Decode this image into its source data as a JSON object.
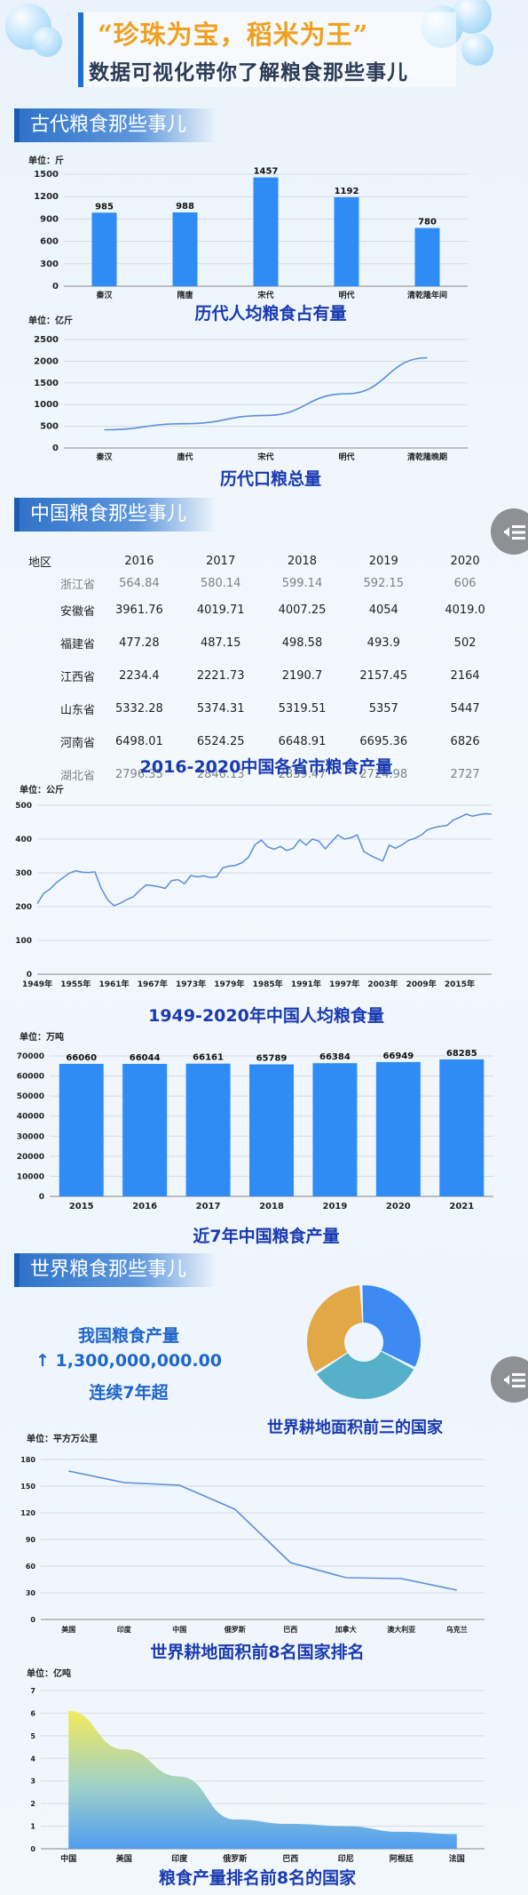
{
  "header": {
    "title": "“珍珠为宝，稻米为王”",
    "subtitle": "数据可视化带你了解粮食那些事儿"
  },
  "sections": {
    "ancient": "古代粮食那些事儿",
    "china": "中国粮食那些事儿",
    "world": "世界粮食那些事儿"
  },
  "captions": {
    "c1": "历代人均粮食占有量",
    "c2": "历代口粮总量",
    "c3": "2016-2020中国各省市粮食产量",
    "c4": "1949-2020年中国人均粮食量",
    "c5": "近7年中国粮食产量",
    "c6": "世界耕地面积前三的国家",
    "c7": "世界耕地面积前8名国家排名",
    "c8": "粮食产量排名前8名的国家"
  },
  "stat": {
    "line1": "我国粮食产量",
    "value": "1,300,000,000.00",
    "line3": "连续7年超",
    "arrow": "arrow-up-icon"
  },
  "colors": {
    "bar": "#2f8cf5",
    "line": "#5b8fd8",
    "title_accent": "#f0a020",
    "caption": "#1a3bb0"
  },
  "table": {
    "headers": [
      "地区",
      "2016",
      "2017",
      "2018",
      "2019",
      "2020"
    ],
    "rows": [
      [
        "",
        "564.84",
        "580.14",
        "599.14",
        "592.15",
        "606"
      ],
      [
        "安徽省",
        "3961.76",
        "4019.71",
        "4007.25",
        "4054",
        "4019.0"
      ],
      [
        "福建省",
        "477.28",
        "487.15",
        "498.58",
        "493.9",
        "502"
      ],
      [
        "江西省",
        "2234.4",
        "2221.73",
        "2190.7",
        "2157.45",
        "2164"
      ],
      [
        "山东省",
        "5332.28",
        "5374.31",
        "5319.51",
        "5357",
        "5447"
      ],
      [
        "河南省",
        "6498.01",
        "6524.25",
        "6648.91",
        "6695.36",
        "6826"
      ],
      [
        "",
        "2796.35",
        "2846.13",
        "2839.47",
        "2724.98",
        "2727"
      ]
    ],
    "partial_row_labels": [
      "浙江省",
      "湖北省"
    ]
  },
  "chart_data": [
    {
      "type": "bar",
      "unit": "单位：斤",
      "categories": [
        "秦汉",
        "隋唐",
        "宋代",
        "明代",
        "清乾隆年间"
      ],
      "values": [
        985,
        988,
        1457,
        1192,
        780
      ],
      "ylim": [
        0,
        1500
      ],
      "yticks": [
        "0",
        "300",
        "600",
        "900",
        "1200",
        "1500"
      ]
    },
    {
      "type": "line",
      "unit": "单位：亿斤",
      "categories": [
        "秦汉",
        "唐代",
        "宋代",
        "明代",
        "清乾隆晚期"
      ],
      "values": [
        420,
        560,
        750,
        1250,
        2080
      ],
      "ylim": [
        0,
        2500
      ],
      "yticks": [
        "0",
        "500",
        "1000",
        "1500",
        "2000",
        "2500"
      ]
    },
    {
      "type": "line",
      "unit": "单位：公斤",
      "x_tick_labels": [
        "1949年",
        "1955年",
        "1961年",
        "1967年",
        "1973年",
        "1979年",
        "1985年",
        "1991年",
        "1997年",
        "2003年",
        "2009年",
        "2015年"
      ],
      "x_start": 1949,
      "values": [
        209,
        239,
        252,
        271,
        285,
        299,
        306,
        302,
        301,
        303,
        254,
        220,
        203,
        210,
        221,
        229,
        248,
        264,
        262,
        259,
        254,
        277,
        280,
        268,
        292,
        288,
        291,
        286,
        288,
        315,
        320,
        322,
        330,
        346,
        383,
        397,
        377,
        370,
        378,
        366,
        373,
        398,
        382,
        400,
        394,
        371,
        392,
        412,
        400,
        404,
        412,
        364,
        352,
        343,
        335,
        382,
        373,
        383,
        396,
        402,
        412,
        428,
        434,
        438,
        440,
        456,
        464,
        474,
        468,
        472,
        475,
        474
      ],
      "ylim": [
        0,
        500
      ],
      "yticks": [
        "0",
        "100",
        "200",
        "300",
        "400",
        "500"
      ]
    },
    {
      "type": "bar",
      "unit": "单位：万吨",
      "categories": [
        "2015",
        "2016",
        "2017",
        "2018",
        "2019",
        "2020",
        "2021"
      ],
      "values": [
        66060,
        66044,
        66161,
        65789,
        66384,
        66949,
        68285
      ],
      "ylim": [
        0,
        70000
      ],
      "yticks": [
        "0",
        "10000",
        "20000",
        "30000",
        "40000",
        "50000",
        "60000",
        "70000"
      ]
    },
    {
      "type": "pie",
      "donut": true,
      "values": [
        1,
        1,
        1
      ],
      "colors": [
        "#3d8af2",
        "#57b0c9",
        "#e2a846"
      ]
    },
    {
      "type": "line",
      "unit": "单位：平方万公里",
      "categories": [
        "美国",
        "印度",
        "中国",
        "俄罗斯",
        "巴西",
        "加拿大",
        "澳大利亚",
        "乌克兰"
      ],
      "values": [
        167,
        154,
        151,
        124,
        64,
        47,
        46,
        33
      ],
      "ylim": [
        0,
        180
      ],
      "yticks": [
        "0",
        "30",
        "60",
        "90",
        "120",
        "150",
        "180"
      ]
    },
    {
      "type": "area",
      "unit": "单位：亿吨",
      "categories": [
        "中国",
        "美国",
        "印度",
        "俄罗斯",
        "巴西",
        "印尼",
        "阿根廷",
        "法国"
      ],
      "values": [
        6.1,
        4.4,
        3.2,
        1.3,
        1.1,
        1.0,
        0.75,
        0.65
      ],
      "ylim": [
        0,
        7
      ],
      "yticks": [
        "0",
        "1",
        "2",
        "3",
        "4",
        "5",
        "6",
        "7"
      ]
    }
  ]
}
